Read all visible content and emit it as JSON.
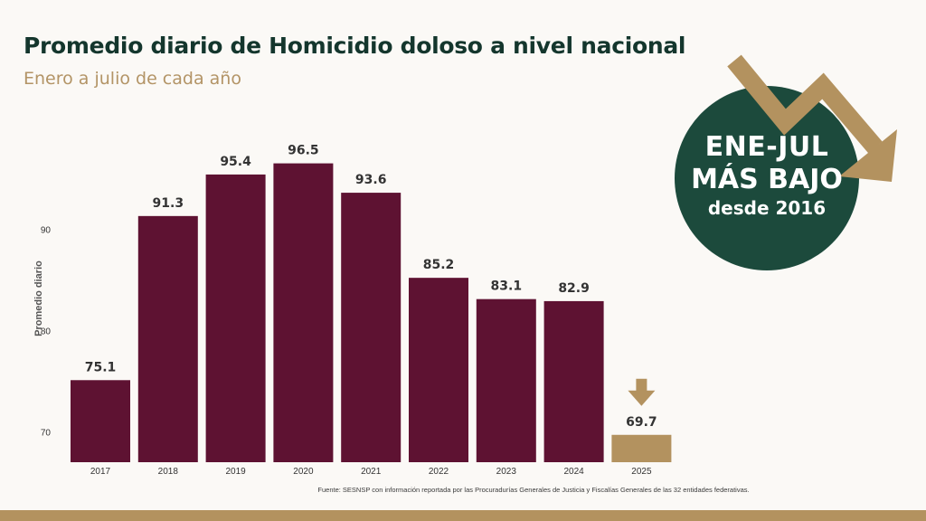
{
  "header": {
    "title": "Promedio diario de Homicidio doloso a nivel nacional",
    "subtitle": "Enero a julio de cada año"
  },
  "badge": {
    "line1": "ENE-JUL",
    "line2": "MÁS BAJO",
    "line3": "desde 2016",
    "circle_color": "#1c4a3c",
    "arrow_color": "#b3925f"
  },
  "footer": {
    "source": "Fuente: SESNSP con información reportada por las Procuradurías Generales de Justicia y Fiscalías Generales de las 32 entidades federativas."
  },
  "chart_data": {
    "type": "bar",
    "ylabel": "Promedio diario",
    "categories": [
      "2017",
      "2018",
      "2019",
      "2020",
      "2021",
      "2022",
      "2023",
      "2024",
      "2025"
    ],
    "values": [
      75.1,
      91.3,
      95.4,
      96.5,
      93.6,
      85.2,
      83.1,
      82.9,
      69.7
    ],
    "data_labels": [
      "75.1",
      "91.3",
      "95.4",
      "96.5",
      "93.6",
      "85.2",
      "83.1",
      "82.9",
      "69.7"
    ],
    "y_ticks": [
      70,
      80,
      90
    ],
    "ylim": [
      67,
      100
    ],
    "bar_color": "#5e1232",
    "highlight_color": "#b3925f",
    "highlight_index": 8,
    "grid": false,
    "legend": "none"
  }
}
